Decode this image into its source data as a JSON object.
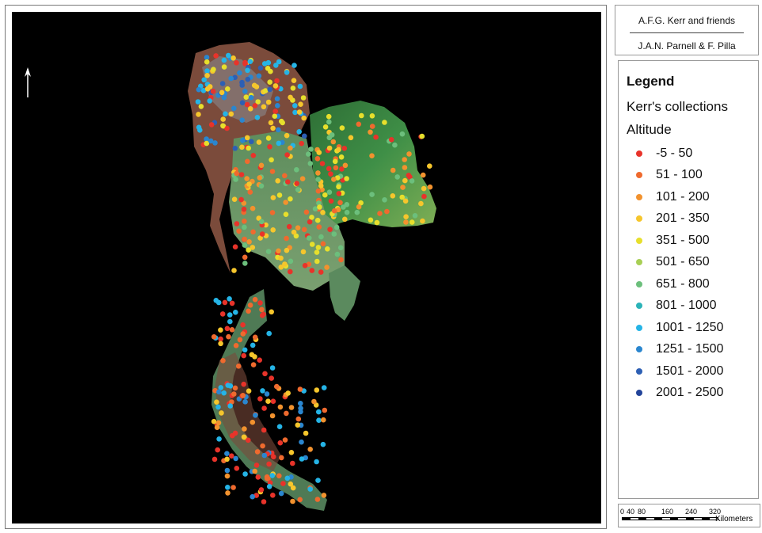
{
  "credits": {
    "line1": "A.F.G. Kerr and friends",
    "line2": "J.A.N. Parnell & F. Pilla"
  },
  "legend": {
    "title": "Legend",
    "subtitle": "Kerr's collections",
    "attribute": "Altitude",
    "classes": [
      {
        "label": "-5 - 50",
        "color": "#e8332a"
      },
      {
        "label": "51 - 100",
        "color": "#ef6a2e"
      },
      {
        "label": "101 - 200",
        "color": "#f2922e"
      },
      {
        "label": "201 - 350",
        "color": "#f6c62c"
      },
      {
        "label": "351 - 500",
        "color": "#e7df2c"
      },
      {
        "label": "501 - 650",
        "color": "#a8cf55"
      },
      {
        "label": "651 - 800",
        "color": "#6cbf7c"
      },
      {
        "label": "801 - 1000",
        "color": "#2bb3b8"
      },
      {
        "label": "1001 - 1250",
        "color": "#25b4e6"
      },
      {
        "label": "1251 - 1500",
        "color": "#2a86cf"
      },
      {
        "label": "1501 - 2000",
        "color": "#2d5fb4"
      },
      {
        "label": "2001 - 2500",
        "color": "#23449a"
      }
    ]
  },
  "scale_bar": {
    "ticks": [
      "0",
      "40",
      "80",
      "160",
      "240",
      "320"
    ],
    "units": "Kilometers"
  },
  "map": {
    "background": "#000000",
    "north_arrow_icon": "north-arrow-icon",
    "land_colors": {
      "lowland": "#6b9a6a",
      "plateau": "#2f7a3e",
      "mountain": "#7a4a3a"
    }
  }
}
